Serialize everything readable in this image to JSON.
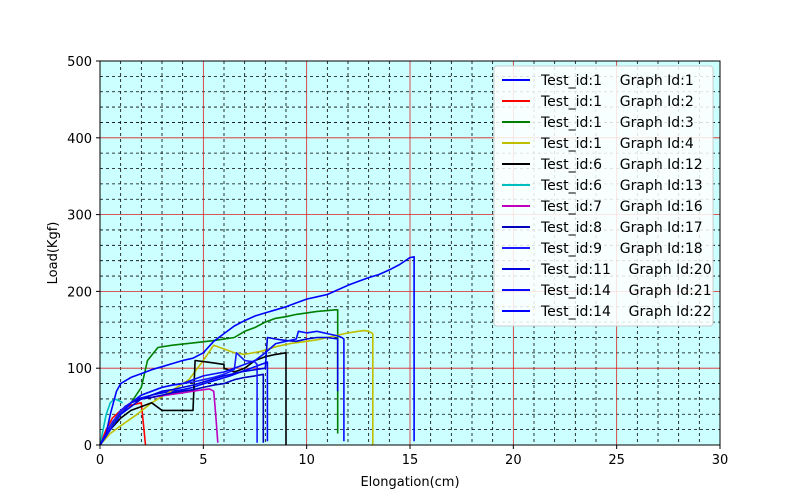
{
  "chart_data": {
    "type": "line",
    "title": "",
    "xlabel": "Elongation(cm)",
    "ylabel": "Load(Kgf)",
    "xlim": [
      0,
      30
    ],
    "ylim": [
      0,
      500
    ],
    "xticks": [
      0,
      5,
      10,
      15,
      20,
      25,
      30
    ],
    "yticks": [
      0,
      100,
      200,
      300,
      400,
      500
    ],
    "background": "#ccffff",
    "grid": {
      "major_color": "#d92020",
      "minor_color": "#000000",
      "minor_style": "dashed"
    },
    "legend_position": "top-right",
    "series": [
      {
        "name": "Test_id:1    Graph Id:1",
        "color": "#0000ff",
        "x": [
          0,
          0.3,
          0.6,
          0.9,
          1.2,
          1.5,
          1.8,
          2.1,
          2.5,
          3.0,
          3.5,
          4.0,
          4.5,
          4.8,
          5.3,
          5.8,
          6.3,
          6.8,
          7.3,
          7.8,
          8.1,
          8.1
        ],
        "y": [
          0,
          15,
          30,
          40,
          50,
          55,
          60,
          62,
          65,
          68,
          70,
          72,
          75,
          78,
          82,
          86,
          90,
          95,
          100,
          105,
          108,
          5
        ]
      },
      {
        "name": "Test_id:1    Graph Id:2",
        "color": "#ff0000",
        "x": [
          0,
          0.3,
          0.6,
          1.0,
          1.5,
          2.0,
          2.2
        ],
        "y": [
          0,
          20,
          35,
          45,
          52,
          55,
          0
        ]
      },
      {
        "name": "Test_id:1    Graph Id:3",
        "color": "#008000",
        "x": [
          0,
          0.5,
          1.0,
          1.5,
          2.0,
          2.3,
          2.8,
          3.5,
          4.5,
          5.5,
          6.5,
          7.0,
          7.5,
          8.0,
          8.5,
          9.0,
          9.5,
          10.0,
          10.5,
          11.0,
          11.4,
          11.5,
          11.5
        ],
        "y": [
          0,
          20,
          45,
          55,
          75,
          110,
          127,
          130,
          133,
          136,
          140,
          148,
          153,
          160,
          165,
          167,
          170,
          172,
          174,
          175,
          176,
          176,
          15
        ]
      },
      {
        "name": "Test_id:1    Graph Id:4",
        "color": "#bfbf00",
        "x": [
          0,
          0.5,
          1.0,
          1.8,
          2.5,
          3.3,
          4.3,
          5.0,
          5.5,
          6.0,
          6.5,
          7.0,
          7.8,
          8.5,
          9.2,
          10.0,
          10.5,
          11.0,
          11.5,
          12.0,
          12.5,
          12.8,
          13.0,
          13.2,
          13.2
        ],
        "y": [
          0,
          15,
          25,
          40,
          55,
          68,
          85,
          110,
          130,
          125,
          120,
          118,
          122,
          128,
          132,
          135,
          137,
          140,
          143,
          146,
          148,
          149,
          148,
          145,
          0
        ]
      },
      {
        "name": "Test_id:6    Graph Id:12",
        "color": "#000000",
        "x": [
          0,
          0.5,
          1.0,
          1.5,
          2.0,
          2.5,
          3.0,
          4.5,
          4.6,
          5.2,
          6.0,
          6.0,
          6.5,
          7.0,
          7.5,
          8.0,
          8.5,
          9.0,
          9.0
        ],
        "y": [
          0,
          20,
          35,
          45,
          50,
          55,
          45,
          45,
          110,
          108,
          105,
          100,
          95,
          100,
          110,
          115,
          118,
          120,
          0
        ]
      },
      {
        "name": "Test_id:6    Graph Id:13",
        "color": "#00bfbf",
        "x": [
          0,
          0.3,
          0.5,
          0.7,
          0.9,
          1.1
        ],
        "y": [
          0,
          40,
          55,
          60,
          58,
          55
        ]
      },
      {
        "name": "Test_id:7    Graph Id:16",
        "color": "#bf00bf",
        "x": [
          0,
          0.5,
          1.0,
          1.5,
          2.0,
          2.5,
          3.0,
          3.5,
          4.0,
          4.5,
          5.0,
          5.3,
          5.5,
          5.6,
          5.7
        ],
        "y": [
          0,
          25,
          45,
          55,
          60,
          62,
          64,
          66,
          68,
          70,
          72,
          73,
          70,
          40,
          3
        ]
      },
      {
        "name": "Test_id:8    Graph Id:17",
        "color": "#0000bf",
        "x": [
          0,
          0.5,
          1.0,
          1.5,
          2.0,
          2.5,
          3.0,
          3.5,
          4.0,
          4.5,
          5.0,
          5.5,
          6.0,
          6.5,
          7.0,
          7.5,
          7.9,
          7.9
        ],
        "y": [
          0,
          20,
          40,
          55,
          60,
          62,
          65,
          68,
          70,
          72,
          75,
          78,
          80,
          85,
          88,
          90,
          92,
          3
        ]
      },
      {
        "name": "Test_id:9    Graph Id:18",
        "color": "#1a1aff",
        "x": [
          0,
          0.5,
          1.0,
          1.5,
          2.0,
          2.5,
          3.0,
          3.5,
          4.0,
          4.5,
          5.0,
          5.5,
          6.0,
          6.5,
          6.6,
          7.0,
          7.5,
          7.6,
          7.6
        ],
        "y": [
          0,
          25,
          45,
          55,
          65,
          70,
          75,
          78,
          80,
          82,
          85,
          88,
          92,
          98,
          120,
          110,
          108,
          105,
          3
        ]
      },
      {
        "name": "Test_id:11    Graph Id:20",
        "color": "#0000dd",
        "x": [
          0,
          0.5,
          1.0,
          1.5,
          2.0,
          2.5,
          3.0,
          3.5,
          4.0,
          4.5,
          5.0,
          6.0,
          6.8,
          7.5,
          8.0,
          8.1,
          8.5,
          9.0,
          9.5,
          10.0,
          10.5,
          11.0,
          11.5,
          11.5
        ],
        "y": [
          0,
          20,
          40,
          50,
          60,
          65,
          70,
          72,
          75,
          78,
          82,
          90,
          95,
          98,
          100,
          140,
          138,
          136,
          135,
          138,
          140,
          140,
          138,
          70
        ]
      },
      {
        "name": "Test_id:14    Graph Id:21",
        "color": "#0a0aff",
        "x": [
          0,
          0.5,
          1.0,
          1.5,
          2.0,
          2.5,
          3.0,
          3.5,
          4.0,
          4.5,
          5.0,
          6.0,
          6.5,
          7.0,
          7.5,
          8.0,
          8.5,
          9.0,
          9.5,
          9.6,
          10.0,
          10.5,
          11.0,
          11.5,
          11.7,
          11.8,
          11.8
        ],
        "y": [
          0,
          20,
          40,
          55,
          65,
          70,
          75,
          78,
          80,
          85,
          90,
          95,
          100,
          105,
          110,
          120,
          132,
          135,
          138,
          148,
          146,
          148,
          145,
          142,
          140,
          138,
          5
        ]
      },
      {
        "name": "Test_id:14    Graph Id:22",
        "color": "#0000ff",
        "x": [
          0,
          0.3,
          0.5,
          0.8,
          1.0,
          1.5,
          2.0,
          2.5,
          3.0,
          3.5,
          4.0,
          4.5,
          5.0,
          5.5,
          6.0,
          6.5,
          7.0,
          7.5,
          8.0,
          8.5,
          9.0,
          9.5,
          10.0,
          10.5,
          11.0,
          11.5,
          12.0,
          12.5,
          13.0,
          13.5,
          14.0,
          14.5,
          15.0,
          15.2,
          15.2
        ],
        "y": [
          0,
          15,
          40,
          70,
          80,
          88,
          93,
          98,
          102,
          106,
          110,
          113,
          120,
          135,
          145,
          155,
          162,
          168,
          172,
          176,
          180,
          185,
          190,
          193,
          196,
          202,
          208,
          213,
          218,
          222,
          228,
          235,
          244,
          245,
          5
        ]
      }
    ]
  }
}
